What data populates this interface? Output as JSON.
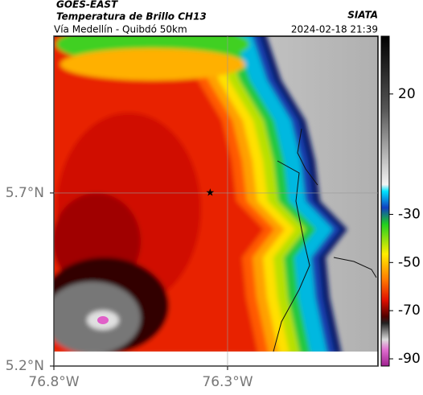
{
  "header": {
    "title": "GOES-EAST",
    "subtitle": "Temperatura de Brillo CH13",
    "region": "Vía Medellín - Quibdó 50km",
    "source": "SIATA",
    "datetime": "2024-02-18 21:39"
  },
  "map": {
    "xlim": [
      -76.8,
      -75.867
    ],
    "ylim": [
      5.2,
      6.153
    ],
    "xticks": [
      {
        "value": -76.8,
        "label": "76.8°W"
      },
      {
        "value": -76.3,
        "label": "76.3°W"
      }
    ],
    "yticks": [
      {
        "value": 5.7,
        "label": "5.7°N"
      },
      {
        "value": 5.2,
        "label": "5.2°N"
      }
    ],
    "grid": true,
    "marker": {
      "lon": -76.35,
      "lat": 5.7
    }
  },
  "colorbar": {
    "lim": [
      -93,
      44
    ],
    "ticks": [
      20,
      -30,
      -50,
      -70,
      -90
    ]
  }
}
